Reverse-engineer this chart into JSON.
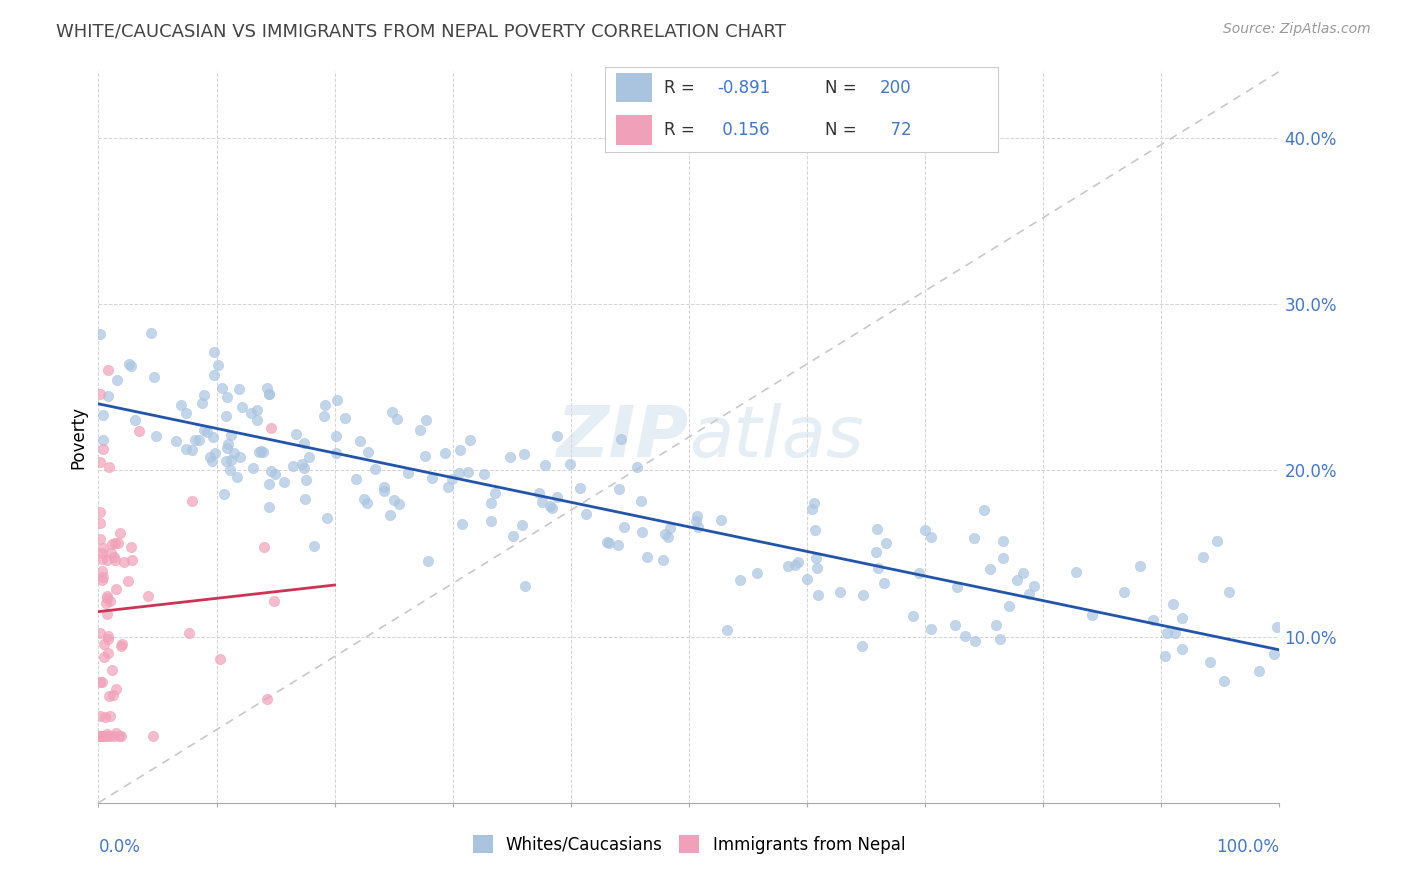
{
  "title": "WHITE/CAUCASIAN VS IMMIGRANTS FROM NEPAL POVERTY CORRELATION CHART",
  "source": "Source: ZipAtlas.com",
  "ylabel": "Poverty",
  "yticks": [
    "10.0%",
    "20.0%",
    "30.0%",
    "40.0%"
  ],
  "ytick_vals": [
    0.1,
    0.2,
    0.3,
    0.4
  ],
  "legend_labels": [
    "Whites/Caucasians",
    "Immigrants from Nepal"
  ],
  "legend_r": [
    -0.891,
    0.156
  ],
  "legend_n": [
    200,
    72
  ],
  "blue_color": "#aac4e0",
  "pink_color": "#f0a0b8",
  "blue_line_color": "#2255aa",
  "pink_line_color": "#cc3355",
  "diagonal_color": "#c8c8c8",
  "watermark_color": "#ccdded",
  "background_color": "#ffffff",
  "text_color_blue": "#4477cc",
  "grid_color": "#d0d0d0",
  "xlim": [
    0,
    1.0
  ],
  "ylim": [
    0,
    0.44
  ],
  "blue_intercept": 0.24,
  "blue_slope": -0.148,
  "pink_intercept": 0.115,
  "pink_slope": 0.08
}
